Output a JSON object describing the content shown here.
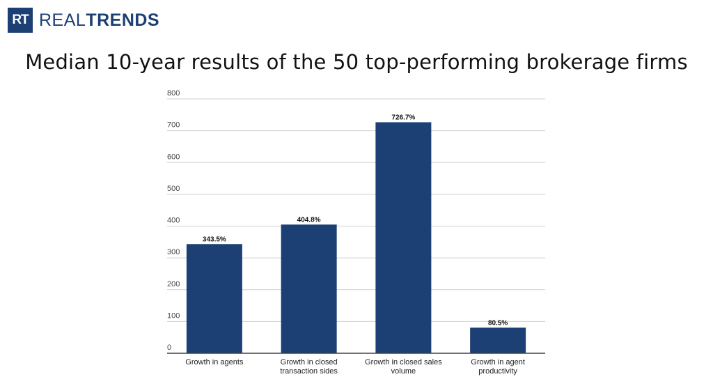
{
  "logo": {
    "mark": "RT",
    "text_light": "REAL",
    "text_bold": "TRENDS"
  },
  "colors": {
    "bar": "#1c3f74",
    "grid": "#cfcfcf",
    "axis": "#444444"
  },
  "chart_data": {
    "type": "bar",
    "title": "Median 10-year results of the 50 top-performing brokerage firms",
    "categories": [
      [
        "Growth in agents"
      ],
      [
        "Growth in closed",
        "transaction sides"
      ],
      [
        "Growth in closed sales",
        "volume"
      ],
      [
        "Growth in agent",
        "productivity"
      ]
    ],
    "values": [
      343.5,
      404.8,
      726.7,
      80.5
    ],
    "data_labels": [
      "343.5%",
      "404.8%",
      "726.7%",
      "80.5%"
    ],
    "yticks": [
      0,
      100,
      200,
      300,
      400,
      500,
      600,
      700,
      800
    ],
    "ylim": [
      0,
      800
    ],
    "xlabel": "",
    "ylabel": "",
    "grid": true,
    "legend": "none"
  }
}
